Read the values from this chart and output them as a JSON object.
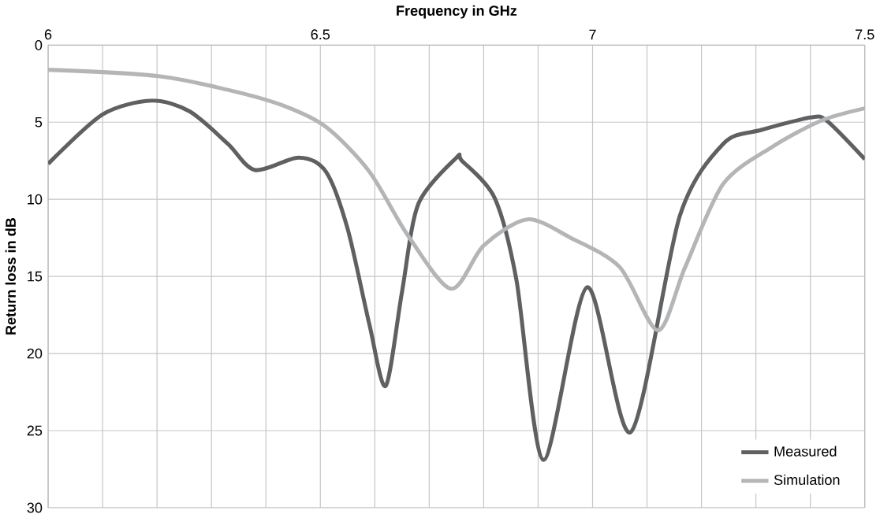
{
  "chart_data": {
    "type": "line",
    "xlabel": "Frequency in GHz",
    "ylabel": "Return loss in dB",
    "xlim": [
      6,
      7.5
    ],
    "xticks": [
      6,
      6.5,
      7,
      7.5
    ],
    "ylim": [
      30,
      0
    ],
    "yticks": [
      0,
      5,
      10,
      15,
      20,
      25,
      30
    ],
    "grid": true,
    "legend": "bottom right",
    "marker": "none",
    "line_style": "solid",
    "series": [
      {
        "name": "Measured",
        "color": "#5f6062",
        "x": [
          6.0,
          6.1,
          6.19,
          6.26,
          6.33,
          6.38,
          6.46,
          6.51,
          6.55,
          6.59,
          6.62,
          6.65,
          6.68,
          6.75,
          6.76,
          6.82,
          6.86,
          6.91,
          6.99,
          7.07,
          7.16,
          7.24,
          7.31,
          7.4,
          7.43,
          7.5
        ],
        "values": [
          7.7,
          4.5,
          3.6,
          4.3,
          6.4,
          8.1,
          7.3,
          8.2,
          11.9,
          18.1,
          22.1,
          16,
          10.3,
          7.3,
          7.5,
          9.9,
          15.2,
          26.9,
          15.7,
          25.1,
          11.1,
          6.4,
          5.5,
          4.7,
          4.9,
          7.4
        ]
      },
      {
        "name": "Simulation",
        "color": "#b3b5b7",
        "x": [
          6.0,
          6.2,
          6.33,
          6.43,
          6.51,
          6.59,
          6.66,
          6.74,
          6.8,
          6.88,
          6.96,
          7.05,
          7.12,
          7.17,
          7.24,
          7.33,
          7.42,
          7.5
        ],
        "values": [
          1.6,
          2.0,
          2.9,
          3.9,
          5.3,
          8.2,
          12.3,
          15.8,
          13.0,
          11.3,
          12.5,
          14.4,
          18.5,
          14.4,
          9.0,
          6.6,
          4.9,
          4.1
        ]
      }
    ]
  }
}
